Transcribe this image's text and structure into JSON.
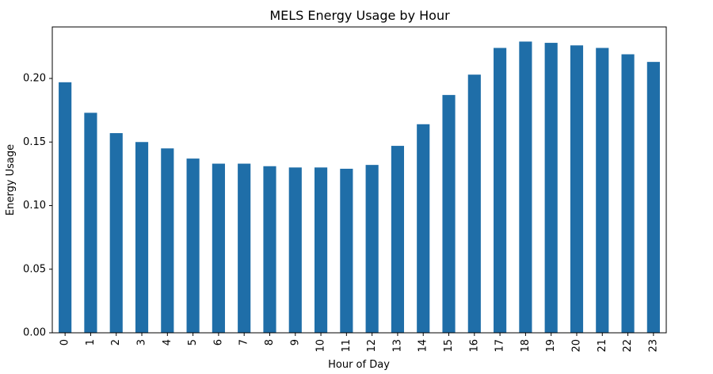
{
  "chart_data": {
    "type": "bar",
    "title": "MELS Energy Usage by Hour",
    "xlabel": "Hour of Day",
    "ylabel": "Energy Usage",
    "categories": [
      "0",
      "1",
      "2",
      "3",
      "4",
      "5",
      "6",
      "7",
      "8",
      "9",
      "10",
      "11",
      "12",
      "13",
      "14",
      "15",
      "16",
      "17",
      "18",
      "19",
      "20",
      "21",
      "22",
      "23"
    ],
    "values": [
      0.197,
      0.173,
      0.157,
      0.15,
      0.145,
      0.137,
      0.133,
      0.133,
      0.131,
      0.13,
      0.13,
      0.129,
      0.132,
      0.147,
      0.164,
      0.187,
      0.203,
      0.224,
      0.229,
      0.228,
      0.226,
      0.224,
      0.219,
      0.213
    ],
    "ylim": [
      0,
      0.2405
    ],
    "yticks": [
      0.0,
      0.05,
      0.1,
      0.15,
      0.2
    ],
    "ytick_labels": [
      "0.00",
      "0.05",
      "0.10",
      "0.15",
      "0.20"
    ],
    "bar_color": "#1f6ea8",
    "grid": false,
    "legend": "none"
  }
}
